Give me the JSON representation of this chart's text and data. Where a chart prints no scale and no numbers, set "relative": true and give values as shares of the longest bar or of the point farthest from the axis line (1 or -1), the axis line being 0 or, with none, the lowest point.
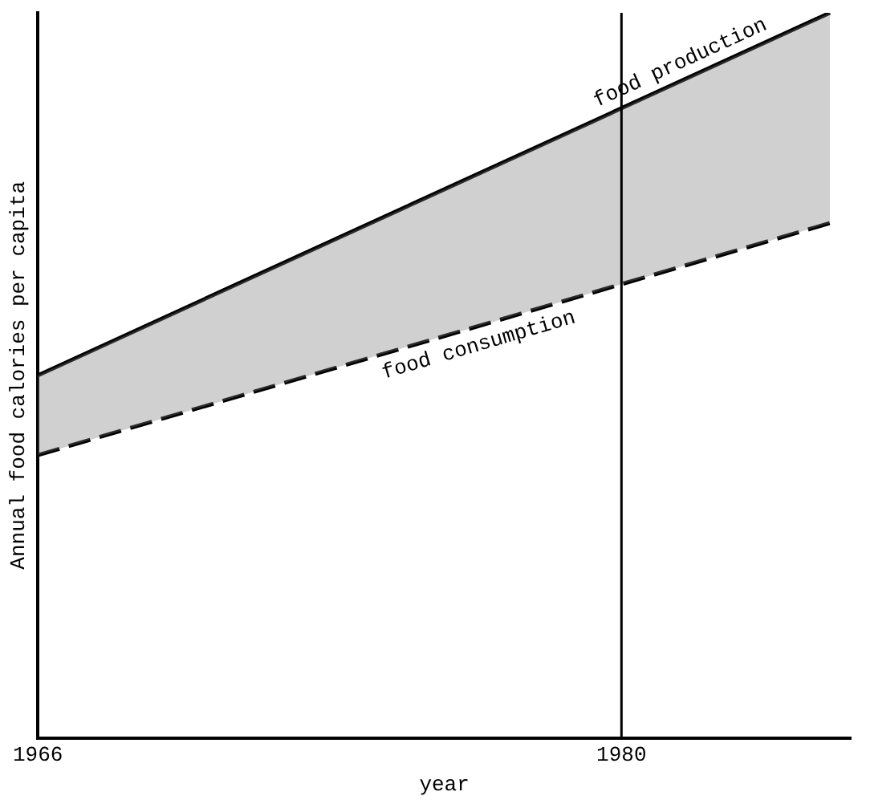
{
  "chart_data": {
    "type": "line",
    "relative": true,
    "xlabel": "year",
    "ylabel": "Annual food calories per capita",
    "xlim": [
      1966,
      1985.5
    ],
    "xticks": [
      1966,
      1980
    ],
    "x": [
      1966,
      1985
    ],
    "legend": false,
    "marker": "none",
    "series": [
      {
        "name": "food production",
        "color": "#000000",
        "line_style": "solid",
        "values": [
          0.5,
          1
        ],
        "lower": [
          0.39,
          0.71
        ],
        "upper": [
          0.5,
          1
        ]
      },
      {
        "name": "food consumption",
        "color": "#000000",
        "line_style": "dashed",
        "values": [
          0.39,
          0.71
        ]
      }
    ],
    "ref_lines": [
      {
        "axis": "x",
        "value": 1980,
        "color": "#000000",
        "line_style": "solid"
      }
    ]
  }
}
